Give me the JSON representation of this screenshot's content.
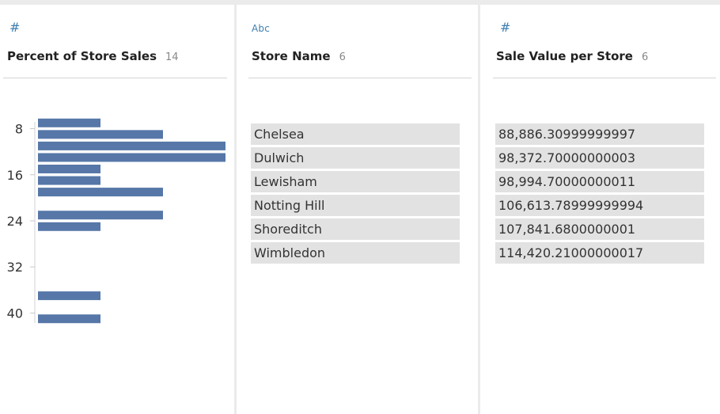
{
  "fields": [
    {
      "type_icon": "number-hash-icon",
      "type_glyph": "#",
      "name": "Percent of Store Sales",
      "count": "14"
    },
    {
      "type_icon": "string-abc-icon",
      "type_glyph": "Abc",
      "name": "Store Name",
      "count": "6",
      "values": [
        "Chelsea",
        "Dulwich",
        "Lewisham",
        "Notting Hill",
        "Shoreditch",
        "Wimbledon"
      ]
    },
    {
      "type_icon": "number-hash-icon",
      "type_glyph": "#",
      "name": "Sale Value per Store",
      "count": "6",
      "values": [
        "88,886.30999999997",
        "98,372.70000000003",
        "98,994.70000000011",
        "106,613.78999999994",
        "107,841.6800000001",
        "114,420.21000000017"
      ]
    }
  ],
  "chart_data": {
    "type": "bar",
    "orientation": "horizontal",
    "y_tick_labels": [
      "8",
      "16",
      "24",
      "32",
      "40"
    ],
    "y_ticks": [
      8,
      16,
      24,
      32,
      40
    ],
    "ylim": [
      6,
      42
    ],
    "bins": [
      7,
      9,
      11,
      13,
      15,
      17,
      19,
      23,
      25,
      37,
      41
    ],
    "counts": [
      1,
      2,
      3,
      3,
      1,
      1,
      2,
      2,
      1,
      1,
      1
    ],
    "xlim": [
      0,
      3
    ],
    "bar_color": "#5677a8"
  },
  "colors": {
    "accent": "#3f7fb1",
    "bar": "#5677a8",
    "row_bg": "#e2e2e2"
  }
}
